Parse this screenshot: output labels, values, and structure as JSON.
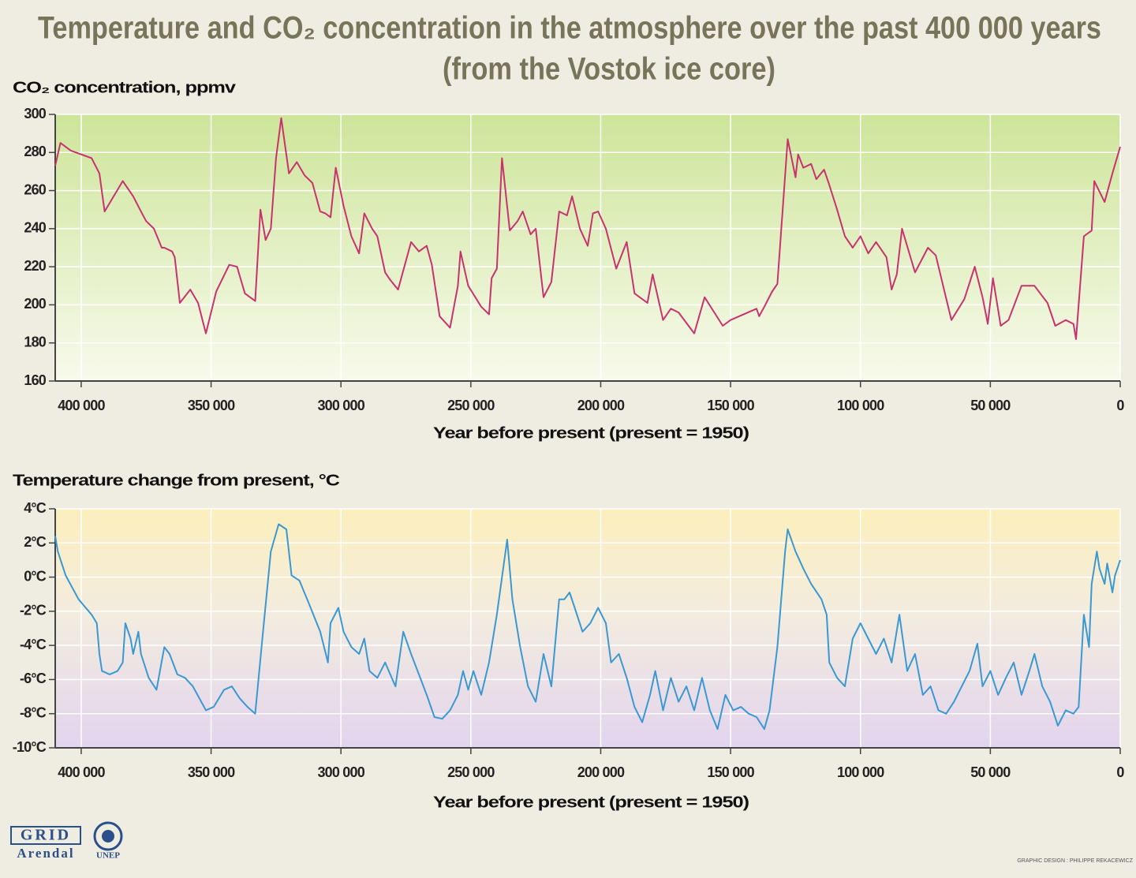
{
  "title": "Temperature and CO₂ concentration in the atmosphere over the past 400 000 years",
  "subtitle": "(from the Vostok ice core)",
  "chart_data": [
    {
      "type": "line",
      "y_label": "CO₂ concentration, ppmv",
      "x_label": "Year before present (present = 1950)",
      "xlim": [
        410000,
        0
      ],
      "ylim": [
        160,
        300
      ],
      "grid": true,
      "xticks": [
        {
          "value": 400000,
          "label": "400 000"
        },
        {
          "value": 350000,
          "label": "350 000"
        },
        {
          "value": 300000,
          "label": "300 000"
        },
        {
          "value": 250000,
          "label": "250 000"
        },
        {
          "value": 200000,
          "label": "200 000"
        },
        {
          "value": 150000,
          "label": "150 000"
        },
        {
          "value": 100000,
          "label": "100 000"
        },
        {
          "value": 50000,
          "label": "50 000"
        },
        0
      ],
      "yticks": [
        160,
        180,
        200,
        220,
        240,
        260,
        280,
        300
      ],
      "x": [
        410000,
        408000,
        404000,
        396000,
        393000,
        391000,
        384000,
        380000,
        377000,
        375000,
        372000,
        369000,
        368000,
        365000,
        364000,
        362000,
        358000,
        355000,
        352000,
        348000,
        343000,
        340000,
        337000,
        333000,
        331000,
        329000,
        327000,
        325000,
        323000,
        320000,
        317000,
        314000,
        311000,
        308000,
        306000,
        304000,
        302000,
        299000,
        296000,
        293000,
        291000,
        288000,
        286000,
        283000,
        281000,
        278000,
        273000,
        270000,
        267000,
        265000,
        262000,
        260000,
        258000,
        255000,
        254000,
        251000,
        246000,
        243000,
        242000,
        240000,
        238000,
        235000,
        232000,
        230000,
        227000,
        225000,
        222000,
        219000,
        216000,
        213000,
        211000,
        208000,
        205000,
        203000,
        201000,
        198000,
        194000,
        190000,
        187000,
        182000,
        180000,
        176000,
        173000,
        170000,
        164000,
        160000,
        153000,
        150000,
        140000,
        139000,
        137000,
        134000,
        132000,
        128000,
        125000,
        124000,
        122000,
        119000,
        117000,
        114000,
        112000,
        109000,
        106000,
        103000,
        100000,
        97000,
        94000,
        90000,
        88000,
        86000,
        84000,
        79000,
        74000,
        71000,
        65000,
        60000,
        56000,
        53000,
        51000,
        49000,
        46000,
        43000,
        38000,
        33000,
        28000,
        25000,
        21000,
        18000,
        17000,
        14000,
        11000,
        10000,
        6000,
        3000,
        0
      ],
      "series": [
        {
          "color": "#c8336f",
          "values": [
            273,
            285,
            281,
            277,
            269,
            249,
            265,
            257,
            249,
            244,
            240,
            230,
            230,
            228,
            225,
            201,
            208,
            201,
            185,
            207,
            221,
            220,
            206,
            202,
            250,
            234,
            240,
            277,
            298,
            269,
            275,
            268,
            264,
            249,
            248,
            246,
            272,
            252,
            236,
            227,
            248,
            240,
            236,
            217,
            213,
            208,
            233,
            228,
            231,
            221,
            194,
            191,
            188,
            210,
            228,
            210,
            199,
            195,
            214,
            219,
            277,
            239,
            244,
            249,
            237,
            240,
            204,
            212,
            249,
            247,
            257,
            240,
            231,
            248,
            249,
            240,
            219,
            233,
            206,
            201,
            216,
            192,
            198,
            196,
            185,
            204,
            189,
            192,
            198,
            194,
            199,
            207,
            211,
            287,
            267,
            279,
            272,
            274,
            266,
            271,
            263,
            250,
            236,
            230,
            236,
            227,
            233,
            225,
            208,
            216,
            240,
            217,
            230,
            226,
            192,
            203,
            220,
            204,
            190,
            214,
            189,
            192,
            210,
            210,
            201,
            189,
            192,
            190,
            182,
            236,
            239,
            265,
            254,
            269,
            283
          ]
        }
      ]
    },
    {
      "type": "line",
      "y_label": "Temperature change from present, °C",
      "x_label": "Year before present (present = 1950)",
      "xlim": [
        410000,
        0
      ],
      "ylim": [
        -10,
        4
      ],
      "grid": true,
      "xticks": [
        {
          "value": 400000,
          "label": "400 000"
        },
        {
          "value": 350000,
          "label": "350 000"
        },
        {
          "value": 300000,
          "label": "300 000"
        },
        {
          "value": 250000,
          "label": "250 000"
        },
        {
          "value": 200000,
          "label": "200 000"
        },
        {
          "value": 150000,
          "label": "150 000"
        },
        {
          "value": 100000,
          "label": "100 000"
        },
        {
          "value": 50000,
          "label": "50 000"
        },
        0
      ],
      "yticks": [
        {
          "value": -10,
          "label": "-10°C"
        },
        {
          "value": -8,
          "label": "-8°C"
        },
        {
          "value": -6,
          "label": "-6°C"
        },
        {
          "value": -4,
          "label": "-4°C"
        },
        {
          "value": -2,
          "label": "-2°C"
        },
        {
          "value": 0,
          "label": "0°C"
        },
        {
          "value": 2,
          "label": "2°C"
        },
        {
          "value": 4,
          "label": "4°C"
        }
      ],
      "x": [
        410000,
        409000,
        406000,
        401000,
        396000,
        394000,
        393000,
        392000,
        389000,
        386000,
        384000,
        383000,
        381000,
        380000,
        378000,
        377000,
        374000,
        371000,
        368000,
        366000,
        363000,
        360000,
        357000,
        352000,
        349000,
        345000,
        342000,
        339000,
        336000,
        333000,
        330000,
        327000,
        324000,
        321000,
        319000,
        316000,
        313000,
        308000,
        305000,
        304000,
        301000,
        299000,
        296000,
        293000,
        291000,
        289000,
        286000,
        283000,
        279000,
        276000,
        273000,
        270000,
        267000,
        264000,
        261000,
        258000,
        255000,
        253000,
        251000,
        249000,
        246000,
        243000,
        240000,
        236000,
        234000,
        231000,
        228000,
        225000,
        222000,
        219000,
        216000,
        214000,
        212000,
        210000,
        207000,
        204000,
        201000,
        198000,
        196000,
        193000,
        190000,
        187000,
        184000,
        181000,
        179000,
        176000,
        173000,
        170000,
        167000,
        164000,
        161000,
        158000,
        155000,
        152000,
        149000,
        146000,
        143000,
        140000,
        137000,
        135000,
        132000,
        129000,
        128000,
        125000,
        122000,
        119000,
        115000,
        113000,
        112000,
        109000,
        106000,
        103000,
        100000,
        97000,
        94000,
        91000,
        88000,
        85000,
        82000,
        79000,
        76000,
        73000,
        70000,
        67000,
        64000,
        61000,
        58000,
        55000,
        53000,
        50000,
        47000,
        44000,
        41000,
        38000,
        35000,
        33000,
        30000,
        27000,
        24000,
        21000,
        18000,
        16000,
        14000,
        12000,
        11000,
        9000,
        8000,
        6000,
        5000,
        3000,
        2000,
        0
      ],
      "series": [
        {
          "color": "#3a98d2",
          "values": [
            2.4,
            1.5,
            0.1,
            -1.3,
            -2.2,
            -2.7,
            -4.5,
            -5.5,
            -5.7,
            -5.5,
            -5.0,
            -2.7,
            -3.6,
            -4.5,
            -3.2,
            -4.5,
            -5.9,
            -6.6,
            -4.1,
            -4.5,
            -5.7,
            -5.9,
            -6.4,
            -7.8,
            -7.6,
            -6.6,
            -6.4,
            -7.1,
            -7.6,
            -8.0,
            -3.2,
            1.5,
            3.1,
            2.8,
            0.1,
            -0.2,
            -1.3,
            -3.2,
            -5.0,
            -2.7,
            -1.8,
            -3.2,
            -4.1,
            -4.5,
            -3.6,
            -5.5,
            -5.9,
            -5.0,
            -6.4,
            -3.2,
            -4.5,
            -5.7,
            -6.9,
            -8.2,
            -8.3,
            -7.8,
            -6.9,
            -5.5,
            -6.6,
            -5.5,
            -6.9,
            -5.0,
            -2.2,
            2.2,
            -1.3,
            -4.1,
            -6.4,
            -7.3,
            -4.5,
            -6.4,
            -1.3,
            -1.3,
            -0.9,
            -1.8,
            -3.2,
            -2.7,
            -1.8,
            -2.7,
            -5.0,
            -4.5,
            -5.9,
            -7.6,
            -8.5,
            -6.9,
            -5.5,
            -7.8,
            -5.9,
            -7.3,
            -6.4,
            -7.8,
            -5.9,
            -7.8,
            -8.9,
            -6.9,
            -7.8,
            -7.6,
            -8.0,
            -8.2,
            -8.9,
            -7.8,
            -4.1,
            1.5,
            2.8,
            1.5,
            0.5,
            -0.4,
            -1.3,
            -2.2,
            -5.0,
            -5.9,
            -6.4,
            -3.6,
            -2.7,
            -3.6,
            -4.5,
            -3.6,
            -5.0,
            -2.2,
            -5.5,
            -4.5,
            -6.9,
            -6.4,
            -7.8,
            -8.0,
            -7.3,
            -6.4,
            -5.5,
            -3.9,
            -6.4,
            -5.5,
            -6.9,
            -5.9,
            -5.0,
            -6.9,
            -5.5,
            -4.5,
            -6.4,
            -7.3,
            -8.7,
            -7.8,
            -8.0,
            -7.6,
            -2.2,
            -4.1,
            -0.4,
            1.5,
            0.5,
            -0.4,
            0.8,
            -0.9,
            0.1,
            1.0
          ]
        }
      ]
    }
  ],
  "footer": {
    "logo_grid": "GRID",
    "logo_arendal": "Arendal",
    "logo_unep": "UNEP",
    "credit": "GRAPHIC DESIGN : PHILIPPE REKACEWICZ"
  }
}
